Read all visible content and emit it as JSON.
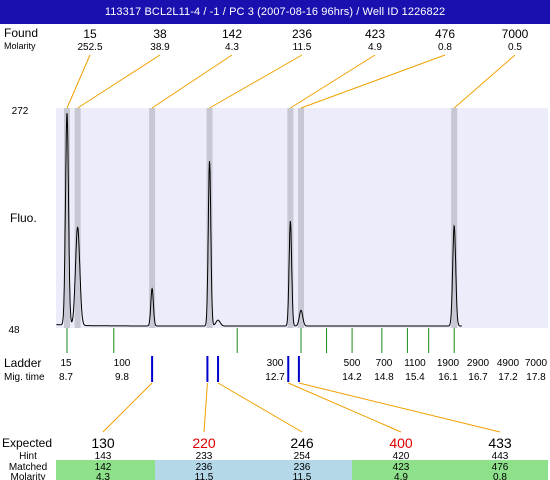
{
  "header": {
    "title": "113317  BCL2L11-4 / -1 / PC 3 (2007-08-16 96hrs) / Well ID 1226822"
  },
  "colors": {
    "title_bar": "#1a10b0",
    "plot_bg": "#ececfa",
    "marker_band": "#c8c8d4",
    "connector": "#f0a000",
    "ladder_tick": "#1a8a1a",
    "expected_tick": "#0000cc",
    "expected_highlight": "#dd0000",
    "matched_green": "#8ee08a",
    "matched_blue": "#b4d8e8"
  },
  "labels": {
    "found": "Found",
    "molarity": "Molarity",
    "fluo": "Fluo.",
    "ladder": "Ladder",
    "mig_time": "Mig. time",
    "expected": "Expected",
    "hint": "Hint",
    "matched": "Matched",
    "molarity_bottom": "Molarity"
  },
  "chart_data": {
    "type": "line",
    "ylabel": "Fluo.",
    "ylim": [
      48,
      272
    ],
    "y_ticks": [
      "272",
      "48"
    ],
    "xlim": [
      8.4,
      18.0
    ],
    "found": [
      {
        "size": "15",
        "molarity": "252.5",
        "time": 8.7
      },
      {
        "size": "38",
        "molarity": "38.9",
        "time": 8.95
      },
      {
        "size": "142",
        "molarity": "4.3",
        "time": 10.7
      },
      {
        "size": "236",
        "molarity": "11.5",
        "time": 12.05
      },
      {
        "size": "423",
        "molarity": "4.9",
        "time": 13.95
      },
      {
        "size": "476",
        "molarity": "0.8",
        "time": 14.2
      },
      {
        "size": "7000",
        "molarity": "0.5",
        "time": 17.8
      }
    ],
    "peaks": [
      {
        "time": 8.7,
        "height": 266,
        "width": 0.035
      },
      {
        "time": 8.95,
        "height": 150,
        "width": 0.05
      },
      {
        "time": 10.7,
        "height": 88,
        "width": 0.03
      },
      {
        "time": 12.05,
        "height": 218,
        "width": 0.03
      },
      {
        "time": 12.25,
        "height": 56,
        "width": 0.05
      },
      {
        "time": 13.95,
        "height": 157,
        "width": 0.03
      },
      {
        "time": 14.2,
        "height": 66,
        "width": 0.04
      },
      {
        "time": 17.8,
        "height": 152,
        "width": 0.035
      }
    ],
    "ladder": [
      {
        "size": "15",
        "time": "8.7",
        "t": 8.7
      },
      {
        "size": "100",
        "time": "9.8",
        "t": 9.8
      },
      {
        "size": "300",
        "time": "12.7",
        "t": 12.7
      },
      {
        "size": "500",
        "time": "14.2",
        "t": 14.2
      },
      {
        "size": "700",
        "time": "14.8",
        "t": 14.8
      },
      {
        "size": "1100",
        "time": "15.4",
        "t": 15.4
      },
      {
        "size": "1900",
        "time": "16.1",
        "t": 16.1
      },
      {
        "size": "2900",
        "time": "16.7",
        "t": 16.7
      },
      {
        "size": "4900",
        "time": "17.2",
        "t": 17.2
      },
      {
        "size": "7000",
        "time": "17.8",
        "t": 17.8
      }
    ],
    "expected_ticks": [
      10.7,
      12.0,
      12.25,
      13.9,
      14.15
    ],
    "expected": [
      {
        "expected": "130",
        "hint": "143",
        "matched": "142",
        "molarity": "4.3",
        "highlight": false,
        "tick": 0,
        "band": "green"
      },
      {
        "expected": "220",
        "hint": "233",
        "matched": "236",
        "molarity": "11.5",
        "highlight": true,
        "tick": 1,
        "band": "blue"
      },
      {
        "expected": "246",
        "hint": "254",
        "matched": "236",
        "molarity": "11.5",
        "highlight": false,
        "tick": 2,
        "band": "blue"
      },
      {
        "expected": "400",
        "hint": "420",
        "matched": "423",
        "molarity": "4.9",
        "highlight": true,
        "tick": 3,
        "band": "green"
      },
      {
        "expected": "433",
        "hint": "443",
        "matched": "476",
        "molarity": "0.8",
        "highlight": false,
        "tick": 4,
        "band": "green"
      }
    ]
  }
}
